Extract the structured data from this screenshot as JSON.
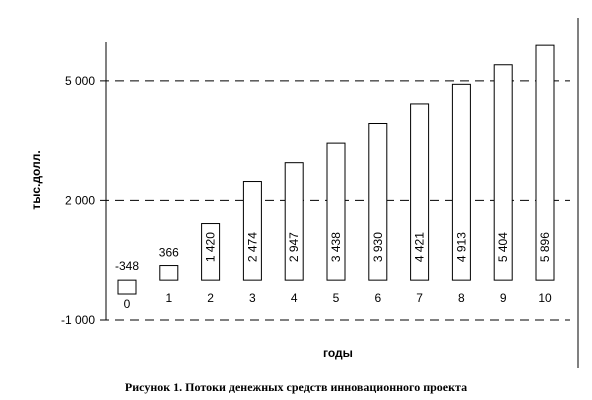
{
  "chart_data": {
    "type": "bar",
    "categories": [
      "0",
      "1",
      "2",
      "3",
      "4",
      "5",
      "6",
      "7",
      "8",
      "9",
      "10"
    ],
    "values": [
      -348,
      366,
      1420,
      2474,
      2947,
      3438,
      3930,
      4421,
      4913,
      5404,
      5896
    ],
    "value_labels": [
      "-348",
      "366",
      "1 420",
      "2 474",
      "2 947",
      "3 438",
      "3 930",
      "4 421",
      "4 913",
      "5 404",
      "5 896"
    ],
    "ylim": [
      -1000,
      6000
    ],
    "yticks": [
      {
        "value": -1000,
        "label": "-1 000"
      },
      {
        "value": 2000,
        "label": "2 000"
      },
      {
        "value": 5000,
        "label": "5 000"
      }
    ],
    "xlabel": "годы",
    "ylabel": "тыс.долл.",
    "grid": "dashed horizontal at major ticks",
    "legend": "none",
    "colors": {
      "bar_fill": "#ffffff",
      "bar_stroke": "#000000",
      "grid": "#000000"
    }
  },
  "caption": "Рисунок 1. Потоки денежных средств инновационного проекта"
}
